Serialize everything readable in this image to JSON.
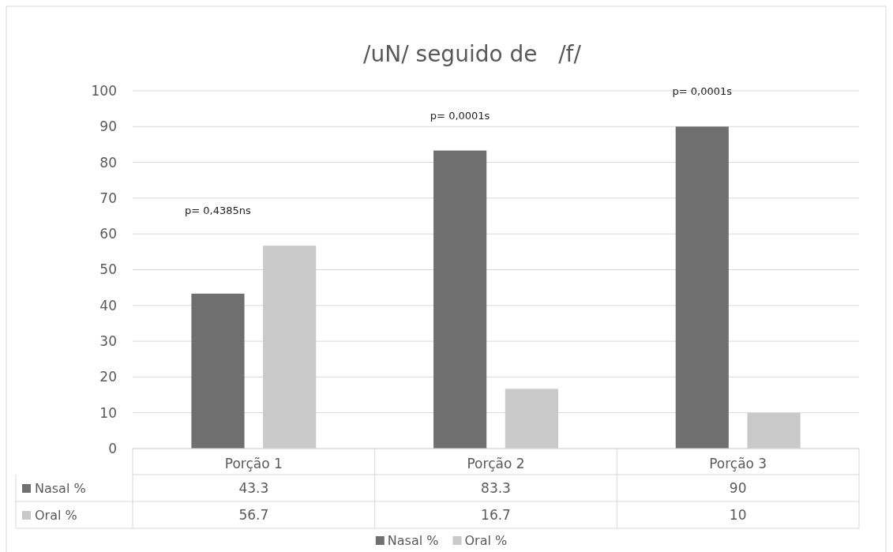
{
  "chart_data": {
    "type": "bar",
    "title": "/uN/ seguido de   /f/",
    "categories": [
      "Porção 1",
      "Porção 2",
      "Porção 3"
    ],
    "series": [
      {
        "name": "Nasal %",
        "color": "#6f6f6f",
        "values": [
          43.3,
          83.3,
          90
        ]
      },
      {
        "name": "Oral %",
        "color": "#c9c9c9",
        "values": [
          56.7,
          16.7,
          10
        ]
      }
    ],
    "ylim": [
      0,
      100
    ],
    "yticks": [
      0,
      10,
      20,
      30,
      40,
      50,
      60,
      70,
      80,
      90,
      100
    ],
    "grid": "y",
    "legend": "bottom",
    "data_labels": true,
    "annotations": [
      "p= 0,4385ns",
      "p= 0,0001s",
      "p= 0,0001s"
    ]
  }
}
